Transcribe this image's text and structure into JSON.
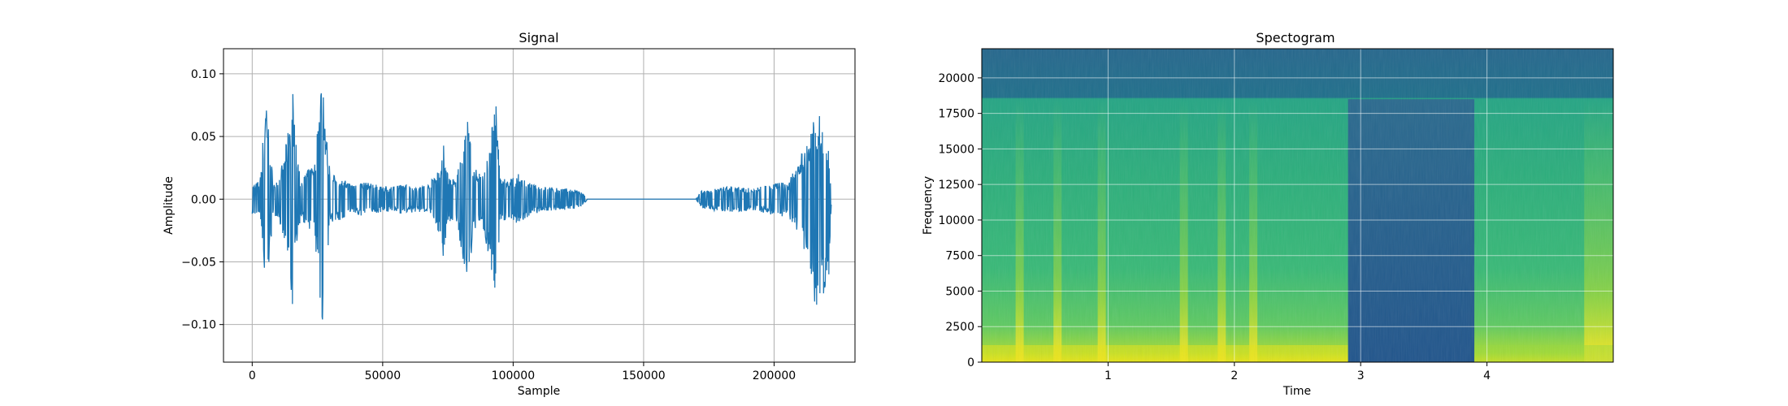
{
  "chart_data": [
    {
      "type": "line",
      "title": "Signal",
      "xlabel": "Sample",
      "ylabel": "Amplitude",
      "xlim": [
        -11000,
        231000
      ],
      "ylim": [
        -0.13,
        0.12
      ],
      "grid": true,
      "xticks": [
        0,
        50000,
        100000,
        150000,
        200000
      ],
      "xtick_labels": [
        "0",
        "50000",
        "100000",
        "150000",
        "200000"
      ],
      "yticks": [
        -0.1,
        -0.05,
        0.0,
        0.05,
        0.1
      ],
      "ytick_labels": [
        "−0.10",
        "−0.05",
        "0.00",
        "0.05",
        "0.10"
      ],
      "series": [
        {
          "color": "#1f77b4",
          "envelope": {
            "x": [
              0,
              3000,
              5000,
              5500,
              6500,
              8000,
              10000,
              13500,
              15500,
              16500,
              18500,
              20000,
              24000,
              27000,
              28000,
              30000,
              33000,
              38000,
              42000,
              47000,
              52000,
              58000,
              63000,
              68000,
              72000,
              73500,
              75000,
              78000,
              81000,
              82500,
              85000,
              88000,
              91000,
              93500,
              95000,
              98000,
              102000,
              107000,
              112000,
              118000,
              123000,
              126000,
              127500,
              128500,
              170000,
              172000,
              177000,
              182000,
              188000,
              193000,
              198000,
              202000,
              205000,
              207000,
              210000,
              212000,
              214000,
              216000,
              218000,
              220000,
              221000,
              222000
            ],
            "upper": [
              0.012,
              0.015,
              0.075,
              0.083,
              0.05,
              0.015,
              0.013,
              0.05,
              0.09,
              0.05,
              0.015,
              0.02,
              0.03,
              0.11,
              0.06,
              0.02,
              0.018,
              0.012,
              0.014,
              0.012,
              0.01,
              0.012,
              0.01,
              0.012,
              0.03,
              0.045,
              0.02,
              0.015,
              0.05,
              0.065,
              0.025,
              0.02,
              0.05,
              0.075,
              0.02,
              0.015,
              0.02,
              0.012,
              0.01,
              0.009,
              0.008,
              0.006,
              0.003,
              0.0,
              0.0,
              0.007,
              0.009,
              0.01,
              0.01,
              0.009,
              0.012,
              0.015,
              0.012,
              0.02,
              0.035,
              0.04,
              0.06,
              0.07,
              0.065,
              0.055,
              0.04,
              0.0
            ],
            "lower": [
              -0.012,
              -0.015,
              -0.08,
              -0.088,
              -0.05,
              -0.015,
              -0.013,
              -0.05,
              -0.095,
              -0.05,
              -0.015,
              -0.02,
              -0.03,
              -0.12,
              -0.06,
              -0.02,
              -0.018,
              -0.012,
              -0.014,
              -0.012,
              -0.01,
              -0.012,
              -0.01,
              -0.012,
              -0.03,
              -0.05,
              -0.02,
              -0.015,
              -0.05,
              -0.07,
              -0.025,
              -0.02,
              -0.05,
              -0.083,
              -0.02,
              -0.015,
              -0.02,
              -0.012,
              -0.01,
              -0.009,
              -0.008,
              -0.006,
              -0.003,
              0.0,
              0.0,
              -0.007,
              -0.009,
              -0.01,
              -0.01,
              -0.009,
              -0.012,
              -0.015,
              -0.012,
              -0.02,
              -0.035,
              -0.05,
              -0.065,
              -0.09,
              -0.08,
              -0.07,
              -0.06,
              0.0
            ]
          }
        }
      ]
    },
    {
      "type": "heatmap",
      "title": "Spectogram",
      "xlabel": "Time",
      "ylabel": "Frequency",
      "xlim": [
        0.0,
        5.0
      ],
      "ylim": [
        0,
        22050
      ],
      "grid": true,
      "xticks": [
        1,
        2,
        3,
        4
      ],
      "xtick_labels": [
        "1",
        "2",
        "3",
        "4"
      ],
      "yticks": [
        0,
        2500,
        5000,
        7500,
        10000,
        12500,
        15000,
        17500,
        20000
      ],
      "ytick_labels": [
        "0",
        "2500",
        "5000",
        "7500",
        "10000",
        "12500",
        "15000",
        "17500",
        "20000"
      ],
      "colormap": [
        "#26828e",
        "#1f9e89",
        "#35b779",
        "#6ece58",
        "#b5de2b",
        "#fde725"
      ],
      "cutoff_frequency": 18500,
      "silent_interval": [
        2.9,
        3.9
      ],
      "bright_times": [
        0.3,
        0.6,
        0.95,
        1.6,
        1.9,
        2.15,
        4.85
      ]
    }
  ]
}
